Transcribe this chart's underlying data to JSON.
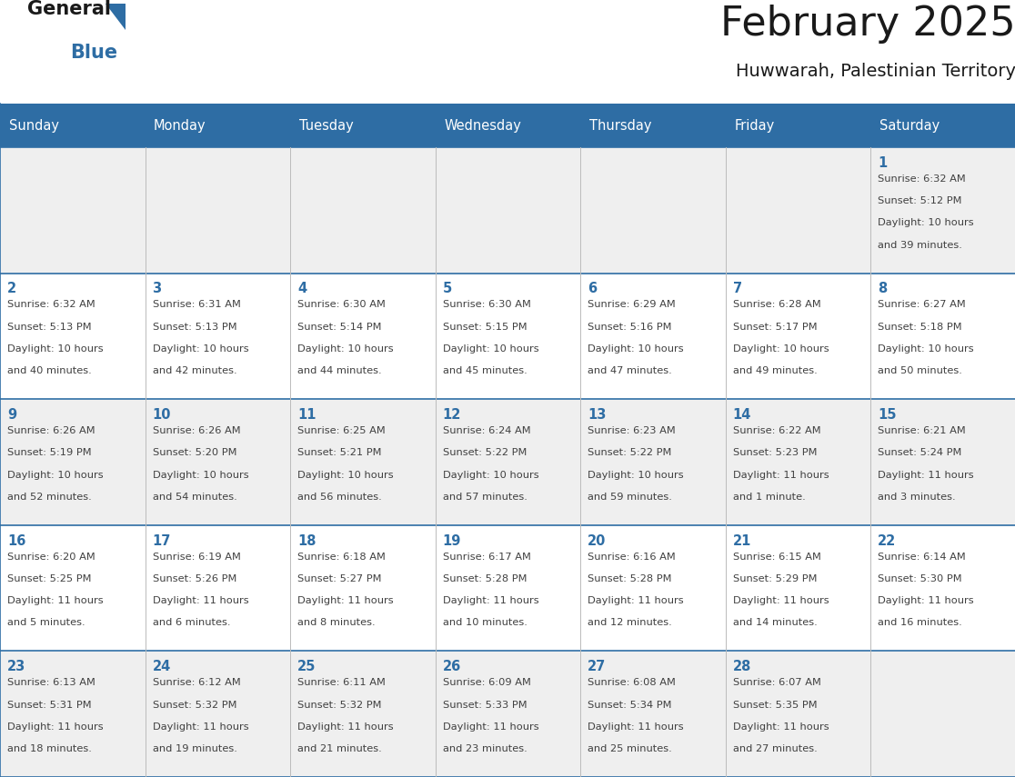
{
  "title": "February 2025",
  "subtitle": "Huwwarah, Palestinian Territory",
  "days_of_week": [
    "Sunday",
    "Monday",
    "Tuesday",
    "Wednesday",
    "Thursday",
    "Friday",
    "Saturday"
  ],
  "header_bg": "#2E6DA4",
  "header_text": "#FFFFFF",
  "cell_bg_alt": "#EFEFEF",
  "cell_bg_white": "#FFFFFF",
  "border_color": "#2E6DA4",
  "day_number_color": "#2E6DA4",
  "text_color": "#404040",
  "calendar": [
    [
      null,
      null,
      null,
      null,
      null,
      null,
      1
    ],
    [
      2,
      3,
      4,
      5,
      6,
      7,
      8
    ],
    [
      9,
      10,
      11,
      12,
      13,
      14,
      15
    ],
    [
      16,
      17,
      18,
      19,
      20,
      21,
      22
    ],
    [
      23,
      24,
      25,
      26,
      27,
      28,
      null
    ]
  ],
  "sunrise": {
    "1": "6:32 AM",
    "2": "6:32 AM",
    "3": "6:31 AM",
    "4": "6:30 AM",
    "5": "6:30 AM",
    "6": "6:29 AM",
    "7": "6:28 AM",
    "8": "6:27 AM",
    "9": "6:26 AM",
    "10": "6:26 AM",
    "11": "6:25 AM",
    "12": "6:24 AM",
    "13": "6:23 AM",
    "14": "6:22 AM",
    "15": "6:21 AM",
    "16": "6:20 AM",
    "17": "6:19 AM",
    "18": "6:18 AM",
    "19": "6:17 AM",
    "20": "6:16 AM",
    "21": "6:15 AM",
    "22": "6:14 AM",
    "23": "6:13 AM",
    "24": "6:12 AM",
    "25": "6:11 AM",
    "26": "6:09 AM",
    "27": "6:08 AM",
    "28": "6:07 AM"
  },
  "sunset": {
    "1": "5:12 PM",
    "2": "5:13 PM",
    "3": "5:13 PM",
    "4": "5:14 PM",
    "5": "5:15 PM",
    "6": "5:16 PM",
    "7": "5:17 PM",
    "8": "5:18 PM",
    "9": "5:19 PM",
    "10": "5:20 PM",
    "11": "5:21 PM",
    "12": "5:22 PM",
    "13": "5:22 PM",
    "14": "5:23 PM",
    "15": "5:24 PM",
    "16": "5:25 PM",
    "17": "5:26 PM",
    "18": "5:27 PM",
    "19": "5:28 PM",
    "20": "5:28 PM",
    "21": "5:29 PM",
    "22": "5:30 PM",
    "23": "5:31 PM",
    "24": "5:32 PM",
    "25": "5:32 PM",
    "26": "5:33 PM",
    "27": "5:34 PM",
    "28": "5:35 PM"
  },
  "daylight": {
    "1": [
      "10 hours",
      "and 39 minutes."
    ],
    "2": [
      "10 hours",
      "and 40 minutes."
    ],
    "3": [
      "10 hours",
      "and 42 minutes."
    ],
    "4": [
      "10 hours",
      "and 44 minutes."
    ],
    "5": [
      "10 hours",
      "and 45 minutes."
    ],
    "6": [
      "10 hours",
      "and 47 minutes."
    ],
    "7": [
      "10 hours",
      "and 49 minutes."
    ],
    "8": [
      "10 hours",
      "and 50 minutes."
    ],
    "9": [
      "10 hours",
      "and 52 minutes."
    ],
    "10": [
      "10 hours",
      "and 54 minutes."
    ],
    "11": [
      "10 hours",
      "and 56 minutes."
    ],
    "12": [
      "10 hours",
      "and 57 minutes."
    ],
    "13": [
      "10 hours",
      "and 59 minutes."
    ],
    "14": [
      "11 hours",
      "and 1 minute."
    ],
    "15": [
      "11 hours",
      "and 3 minutes."
    ],
    "16": [
      "11 hours",
      "and 5 minutes."
    ],
    "17": [
      "11 hours",
      "and 6 minutes."
    ],
    "18": [
      "11 hours",
      "and 8 minutes."
    ],
    "19": [
      "11 hours",
      "and 10 minutes."
    ],
    "20": [
      "11 hours",
      "and 12 minutes."
    ],
    "21": [
      "11 hours",
      "and 14 minutes."
    ],
    "22": [
      "11 hours",
      "and 16 minutes."
    ],
    "23": [
      "11 hours",
      "and 18 minutes."
    ],
    "24": [
      "11 hours",
      "and 19 minutes."
    ],
    "25": [
      "11 hours",
      "and 21 minutes."
    ],
    "26": [
      "11 hours",
      "and 23 minutes."
    ],
    "27": [
      "11 hours",
      "and 25 minutes."
    ],
    "28": [
      "11 hours",
      "and 27 minutes."
    ]
  }
}
